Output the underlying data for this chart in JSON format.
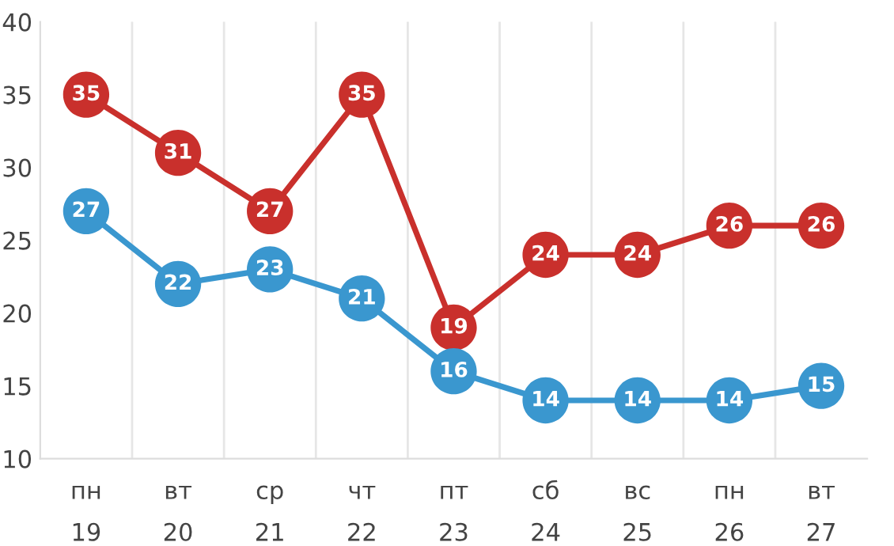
{
  "chart_data": {
    "type": "line",
    "categories": [
      "пн\n19",
      "вт\n20",
      "ср\n21",
      "чт\n22",
      "пт\n23",
      "сб\n24",
      "вс\n25",
      "пн\n26",
      "вт\n27"
    ],
    "series": [
      {
        "color": "#c9302c",
        "values": [
          35,
          31,
          27,
          35,
          19,
          24,
          24,
          26,
          26
        ]
      },
      {
        "color": "#3a97cf",
        "values": [
          27,
          22,
          23,
          21,
          16,
          14,
          14,
          14,
          15
        ]
      }
    ],
    "ylim": [
      10,
      40
    ],
    "yticks": [
      10,
      15,
      20,
      25,
      30,
      35,
      40
    ],
    "grid": "x",
    "marker": "circle",
    "line_style": "solid",
    "data_labels": true
  }
}
